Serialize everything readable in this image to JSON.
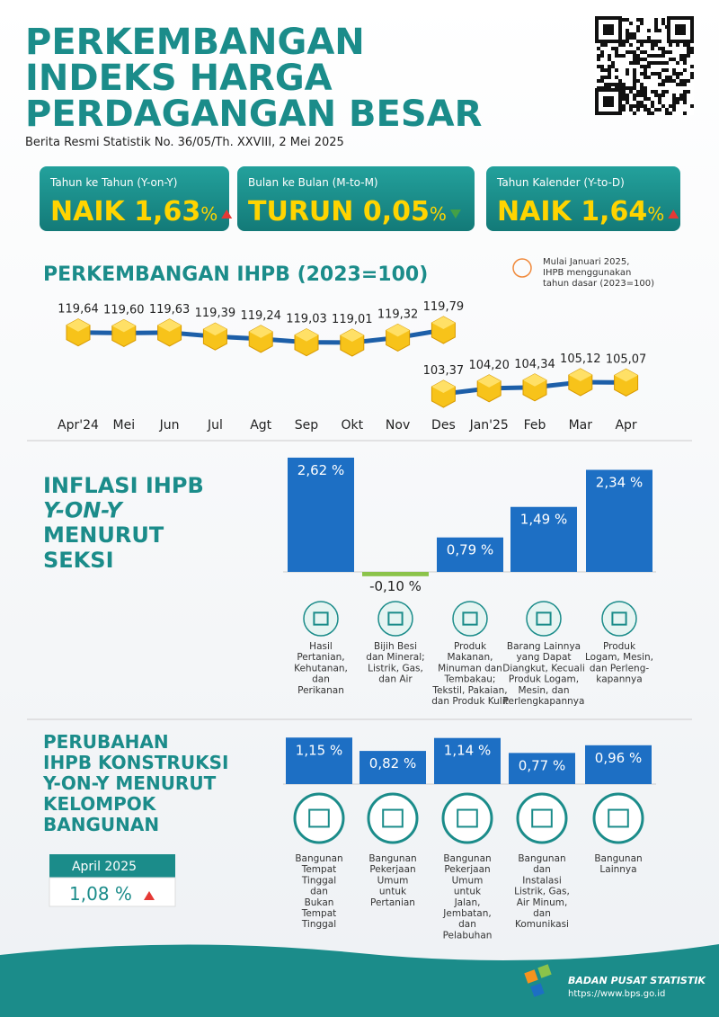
{
  "header": {
    "title": [
      "PERKEMBANGAN",
      "INDEKS HARGA",
      "PERDAGANGAN BESAR"
    ],
    "subtitle": "Berita Resmi Statistik  No. 36/05/Th. XXVIII, 2 Mei 2025"
  },
  "kpis": [
    {
      "label": "Tahun ke Tahun (Y-on-Y)",
      "status": "NAIK",
      "value": "1,63",
      "unit": "%",
      "direction": "up"
    },
    {
      "label": "Bulan ke Bulan  (M-to-M)",
      "status": "TURUN",
      "value": "0,05",
      "unit": "%",
      "direction": "down"
    },
    {
      "label": "Tahun Kalender (Y-to-D)",
      "status": "NAIK",
      "value": "1,64",
      "unit": "%",
      "direction": "up"
    }
  ],
  "chart_data": [
    {
      "type": "line",
      "title": "PERKEMBANGAN IHPB (2023=100)",
      "note": [
        "Mulai Januari 2025,",
        "IHPB menggunakan",
        "tahun dasar (2023=100)"
      ],
      "categories": [
        "Apr'24",
        "Mei",
        "Jun",
        "Jul",
        "Agt",
        "Sep",
        "Okt",
        "Nov",
        "Des",
        "Jan'25",
        "Feb",
        "Mar",
        "Apr"
      ],
      "series": [
        {
          "color": "#f7c31a",
          "values": [
            119.64,
            119.6,
            119.63,
            119.39,
            119.24,
            119.03,
            119.01,
            119.32,
            119.79,
            null,
            null,
            null,
            null
          ],
          "value_labels": [
            "119,64",
            "119,60",
            "119,63",
            "119,39",
            "119,24",
            "119,03",
            "119,01",
            "119,32",
            "119,79",
            null,
            null,
            null,
            null
          ]
        },
        {
          "color": "#f7c31a",
          "values": [
            null,
            null,
            null,
            null,
            null,
            null,
            null,
            null,
            103.37,
            104.2,
            104.34,
            105.12,
            105.07
          ],
          "value_labels": [
            null,
            null,
            null,
            null,
            null,
            null,
            null,
            null,
            "103,37",
            "104,20",
            "104,34",
            "105,12",
            "105,07"
          ]
        }
      ]
    },
    {
      "type": "bar",
      "title": [
        "INFLASI IHPB",
        "Y-ON-Y",
        "MENURUT",
        "SEKSI"
      ],
      "categories": [
        [
          "Hasil",
          "Pertanian,",
          "Kehutanan,",
          "dan",
          "Perikanan"
        ],
        [
          "Bijih Besi",
          "dan Mineral;",
          "Listrik, Gas,",
          "dan Air"
        ],
        [
          "Produk",
          "Makanan,",
          "Minuman dan",
          "Tembakau;",
          "Tekstil, Pakaian,",
          "dan Produk Kulit"
        ],
        [
          "Barang Lainnya",
          "yang Dapat",
          "Diangkut, Kecuali",
          "Produk Logam,",
          "Mesin, dan",
          "Perlengkapannya"
        ],
        [
          "Produk",
          "Logam, Mesin,",
          "dan Perleng-",
          "kapannya"
        ]
      ],
      "values": [
        2.62,
        -0.1,
        0.79,
        1.49,
        2.34
      ],
      "value_labels": [
        "2,62 %",
        "-0,10 %",
        "0,79 %",
        "1,49 %",
        "2,34 %"
      ],
      "color": "#1d6fc4",
      "negative_color": "#8bc34a"
    },
    {
      "type": "bar",
      "title": [
        "PERUBAHAN",
        "IHPB KONSTRUKSI",
        "Y-ON-Y MENURUT",
        "KELOMPOK",
        "BANGUNAN"
      ],
      "categories": [
        [
          "Bangunan",
          "Tempat",
          "Tinggal",
          "dan",
          "Bukan",
          "Tempat",
          "Tinggal"
        ],
        [
          "Bangunan",
          "Pekerjaan",
          "Umum",
          "untuk",
          "Pertanian"
        ],
        [
          "Bangunan",
          "Pekerjaan",
          "Umum",
          "untuk",
          "Jalan,",
          "Jembatan,",
          "dan",
          "Pelabuhan"
        ],
        [
          "Bangunan",
          "dan",
          "Instalasi",
          "Listrik, Gas,",
          "Air Minum,",
          "dan",
          "Komunikasi"
        ],
        [
          "Bangunan",
          "Lainnya"
        ]
      ],
      "values": [
        1.15,
        0.82,
        1.14,
        0.77,
        0.96
      ],
      "value_labels": [
        "1,15 %",
        "0,82 %",
        "1,14 %",
        "0,77 %",
        "0,96 %"
      ],
      "color": "#1d6fc4",
      "summary": {
        "period": "April 2025",
        "value": "1,08 %",
        "direction": "up"
      }
    }
  ],
  "footer": {
    "org": "BADAN PUSAT STATISTIK",
    "url": "https://www.bps.go.id"
  }
}
